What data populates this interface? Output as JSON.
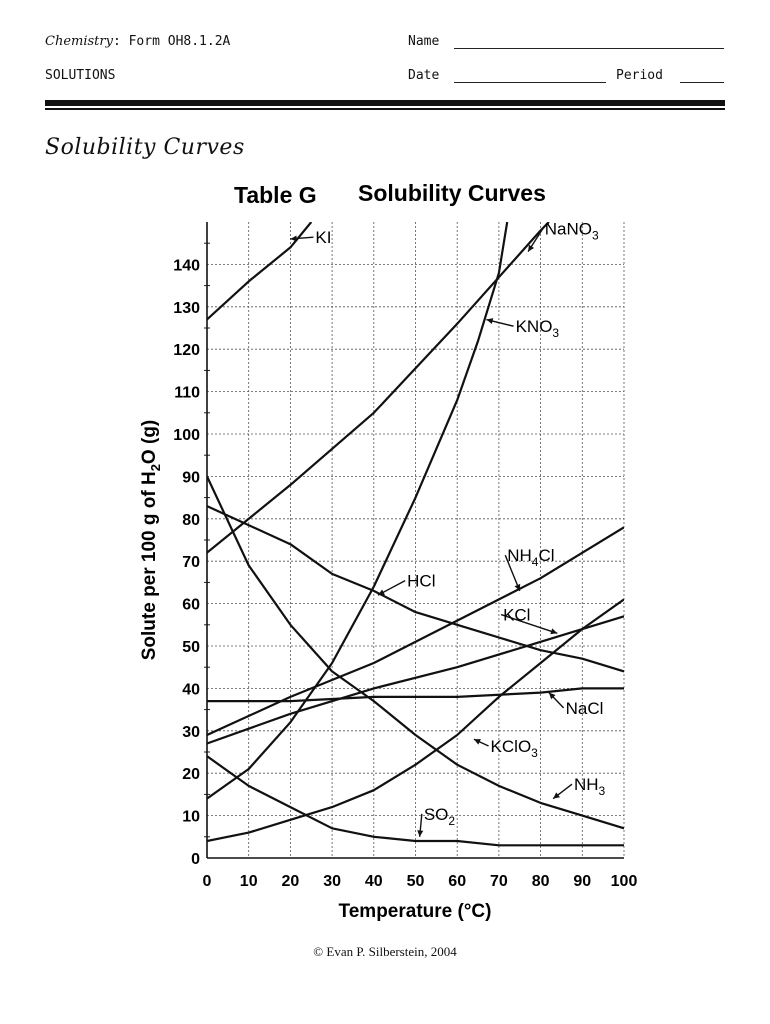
{
  "header": {
    "subject": "Chemistry",
    "form": ": Form OH8.1.2A",
    "unit": "SOLUTIONS",
    "name_label": "Name",
    "date_label": "Date",
    "period_label": "Period"
  },
  "section_title": "Solubility Curves",
  "footer": "© Evan P. Silberstein, 2004",
  "chart_data": {
    "type": "line",
    "title_prefix": "Table G",
    "title": "Solubility Curves",
    "xlabel": "Temperature (°C)",
    "ylabel": "Solute per 100 g of H2O (g)",
    "xlim": [
      0,
      100
    ],
    "ylim": [
      0,
      150
    ],
    "x_ticks": [
      0,
      10,
      20,
      30,
      40,
      50,
      60,
      70,
      80,
      90,
      100
    ],
    "y_ticks": [
      0,
      10,
      20,
      30,
      40,
      50,
      60,
      70,
      80,
      90,
      100,
      110,
      120,
      130,
      140
    ],
    "grid": true,
    "series": [
      {
        "name": "KI",
        "label": {
          "main": "KI",
          "sub": ""
        },
        "points": [
          [
            0,
            127
          ],
          [
            10,
            136
          ],
          [
            20,
            144
          ],
          [
            25,
            150
          ]
        ],
        "label_at": [
          26,
          145
        ],
        "arrow_to": [
          20,
          146
        ]
      },
      {
        "name": "NaNO3",
        "label": {
          "main": "NaNO",
          "sub": "3"
        },
        "points": [
          [
            0,
            72
          ],
          [
            20,
            88
          ],
          [
            40,
            105
          ],
          [
            60,
            126
          ],
          [
            80,
            148
          ],
          [
            82,
            150
          ]
        ],
        "label_at": [
          81,
          147
        ],
        "arrow_to": [
          77,
          143
        ]
      },
      {
        "name": "KNO3",
        "label": {
          "main": "KNO",
          "sub": "3"
        },
        "points": [
          [
            0,
            14
          ],
          [
            10,
            21
          ],
          [
            20,
            32
          ],
          [
            30,
            46
          ],
          [
            40,
            64
          ],
          [
            50,
            85
          ],
          [
            60,
            108
          ],
          [
            65,
            122
          ],
          [
            70,
            138
          ],
          [
            72,
            150
          ]
        ],
        "label_at": [
          74,
          124
        ],
        "arrow_to": [
          67,
          127
        ]
      },
      {
        "name": "NH4Cl",
        "label": {
          "main": "NH",
          "sub": "4",
          "tail": "Cl"
        },
        "points": [
          [
            0,
            29
          ],
          [
            20,
            38
          ],
          [
            40,
            46
          ],
          [
            60,
            56
          ],
          [
            80,
            66
          ],
          [
            100,
            78
          ]
        ],
        "label_at": [
          72,
          70
        ],
        "arrow_to": [
          75,
          63
        ]
      },
      {
        "name": "HCl",
        "label": {
          "main": "HCl",
          "sub": ""
        },
        "points": [
          [
            0,
            83
          ],
          [
            20,
            74
          ],
          [
            30,
            67
          ],
          [
            40,
            63
          ],
          [
            50,
            58
          ],
          [
            60,
            55
          ],
          [
            70,
            52
          ],
          [
            80,
            49
          ],
          [
            90,
            47
          ],
          [
            100,
            44
          ]
        ],
        "label_at": [
          48,
          64
        ],
        "arrow_to": [
          41,
          62
        ]
      },
      {
        "name": "KCl",
        "label": {
          "main": "KCl",
          "sub": ""
        },
        "points": [
          [
            0,
            27
          ],
          [
            20,
            34
          ],
          [
            40,
            40
          ],
          [
            60,
            45
          ],
          [
            80,
            51
          ],
          [
            100,
            57
          ]
        ],
        "label_at": [
          71,
          56
        ],
        "arrow_to": [
          84,
          53
        ]
      },
      {
        "name": "NaCl",
        "label": {
          "main": "NaCl",
          "sub": ""
        },
        "points": [
          [
            0,
            37
          ],
          [
            20,
            37
          ],
          [
            40,
            38
          ],
          [
            60,
            38
          ],
          [
            80,
            39
          ],
          [
            90,
            40
          ],
          [
            100,
            40
          ]
        ],
        "label_at": [
          86,
          34
        ],
        "arrow_to": [
          82,
          39
        ]
      },
      {
        "name": "KClO3",
        "label": {
          "main": "KClO",
          "sub": "3"
        },
        "points": [
          [
            0,
            4
          ],
          [
            10,
            6
          ],
          [
            20,
            9
          ],
          [
            30,
            12
          ],
          [
            40,
            16
          ],
          [
            50,
            22
          ],
          [
            60,
            29
          ],
          [
            70,
            38
          ],
          [
            80,
            46
          ],
          [
            90,
            54
          ],
          [
            100,
            61
          ]
        ],
        "label_at": [
          68,
          25
        ],
        "arrow_to": [
          64,
          28
        ]
      },
      {
        "name": "NH3",
        "label": {
          "main": "NH",
          "sub": "3"
        },
        "points": [
          [
            0,
            90
          ],
          [
            10,
            69
          ],
          [
            20,
            55
          ],
          [
            30,
            44
          ],
          [
            40,
            37
          ],
          [
            50,
            29
          ],
          [
            60,
            22
          ],
          [
            70,
            17
          ],
          [
            80,
            13
          ],
          [
            90,
            10
          ],
          [
            100,
            7
          ]
        ],
        "label_at": [
          88,
          16
        ],
        "arrow_to": [
          83,
          14
        ]
      },
      {
        "name": "SO2",
        "label": {
          "main": "SO",
          "sub": "2"
        },
        "points": [
          [
            0,
            24
          ],
          [
            10,
            17
          ],
          [
            20,
            12
          ],
          [
            30,
            7
          ],
          [
            40,
            5
          ],
          [
            50,
            4
          ],
          [
            60,
            4
          ],
          [
            70,
            3
          ],
          [
            80,
            3
          ],
          [
            90,
            3
          ],
          [
            100,
            3
          ]
        ],
        "label_at": [
          52,
          9
        ],
        "arrow_to": [
          51,
          5
        ]
      }
    ]
  }
}
